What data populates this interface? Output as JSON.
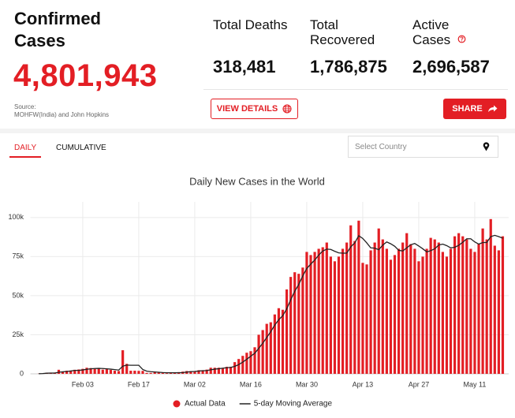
{
  "header": {
    "title": "Confirmed Cases",
    "total": "4,801,943",
    "source": "Source:",
    "source_detail": "MOHFW(India) and John Hopkins"
  },
  "stats": [
    {
      "label": "Total Deaths",
      "value": "318,481"
    },
    {
      "label": "Total Recovered",
      "value": "1,786,875"
    },
    {
      "label": "Active Cases",
      "value": "2,696,587"
    }
  ],
  "buttons": {
    "view_details": "VIEW DETAILS",
    "share": "SHARE"
  },
  "tabs": [
    "DAILY",
    "CUMULATIVE"
  ],
  "country_select": {
    "placeholder": "Select Country"
  },
  "chart_data": {
    "type": "bar",
    "title": "Daily New Cases in the World",
    "categories": [
      null,
      null,
      null,
      null,
      null,
      null,
      null,
      null,
      null,
      null,
      null,
      "Feb 03",
      null,
      null,
      null,
      null,
      null,
      null,
      null,
      null,
      null,
      null,
      null,
      null,
      null,
      "Feb 17",
      null,
      null,
      null,
      null,
      null,
      null,
      null,
      null,
      null,
      null,
      null,
      null,
      null,
      "Mar 02",
      null,
      null,
      null,
      null,
      null,
      null,
      null,
      null,
      null,
      null,
      null,
      null,
      null,
      "Mar 16",
      null,
      null,
      null,
      null,
      null,
      null,
      null,
      null,
      null,
      null,
      null,
      null,
      null,
      "Mar 30",
      null,
      null,
      null,
      null,
      null,
      null,
      null,
      null,
      null,
      null,
      null,
      null,
      null,
      "Apr 13",
      null,
      null,
      null,
      null,
      null,
      null,
      null,
      null,
      null,
      null,
      null,
      null,
      null,
      "Apr 27",
      null,
      null,
      null,
      null,
      null,
      null,
      null,
      null,
      null,
      null,
      null,
      null,
      null,
      "May 11",
      null,
      null,
      null,
      null,
      null,
      null,
      null
    ],
    "series": [
      {
        "name": "Actual Data",
        "type": "bar",
        "color": "#e31e24",
        "values": [
          100,
          300,
          700,
          700,
          800,
          2600,
          1500,
          2000,
          2100,
          2600,
          2800,
          3200,
          3900,
          3700,
          3200,
          3400,
          2700,
          3000,
          2500,
          2000,
          1800,
          15100,
          6400,
          2000,
          2000,
          1900,
          1900,
          600,
          600,
          1000,
          1000,
          600,
          400,
          500,
          800,
          1100,
          1400,
          1800,
          1700,
          1700,
          2300,
          2300,
          2700,
          3900,
          3900,
          3900,
          3500,
          4500,
          4500,
          7500,
          9500,
          11500,
          13500,
          14500,
          17000,
          25000,
          28000,
          32000,
          33000,
          38000,
          42000,
          41000,
          54000,
          62000,
          65000,
          64000,
          68000,
          78000,
          76000,
          78000,
          80000,
          81000,
          84000,
          75000,
          72000,
          75000,
          80000,
          84000,
          95000,
          85000,
          98000,
          71000,
          70000,
          79000,
          84000,
          93000,
          86000,
          80000,
          73000,
          76000,
          80000,
          84000,
          90000,
          83000,
          80000,
          72000,
          75000,
          80000,
          87000,
          86000,
          84000,
          78000,
          75000,
          80000,
          88000,
          90000,
          88000,
          86000,
          80000,
          78000,
          83000,
          93000,
          86000,
          99000,
          82000,
          79000,
          88000
        ]
      },
      {
        "name": "5-day Moving Average",
        "type": "line",
        "color": "#222222",
        "values": [
          100,
          200,
          400,
          500,
          500,
          1000,
          1300,
          1500,
          1800,
          2200,
          2200,
          2500,
          2900,
          3200,
          3400,
          3500,
          3400,
          3200,
          3000,
          2700,
          2400,
          4900,
          5600,
          5500,
          5500,
          5500,
          2800,
          1700,
          1400,
          1200,
          1000,
          800,
          700,
          700,
          700,
          700,
          800,
          1100,
          1400,
          1500,
          1800,
          2000,
          2100,
          2600,
          3000,
          3300,
          3600,
          3900,
          4100,
          4800,
          5900,
          7500,
          9300,
          11300,
          13200,
          16300,
          19600,
          23300,
          27000,
          31200,
          34600,
          37200,
          41600,
          47400,
          52800,
          57200,
          62600,
          67400,
          70200,
          72800,
          76000,
          78600,
          79800,
          79600,
          78400,
          77400,
          77200,
          77200,
          81200,
          83800,
          88400,
          86600,
          83800,
          80600,
          80400,
          79400,
          82400,
          84400,
          83200,
          81600,
          79000,
          78600,
          80600,
          82600,
          83400,
          81800,
          80000,
          78000,
          78800,
          80000,
          82400,
          83000,
          82000,
          80600,
          81000,
          82200,
          84200,
          86400,
          86400,
          84400,
          83000,
          84000,
          84000,
          87800,
          88600,
          87800,
          86800
        ]
      }
    ],
    "ylim": [
      0,
      110000
    ],
    "yticks": [
      0,
      {
        "value": 25000,
        "label": "25k"
      },
      {
        "value": 50000,
        "label": "50k"
      },
      {
        "value": 75000,
        "label": "75k"
      },
      {
        "value": 100000,
        "label": "100k"
      }
    ],
    "grid": true,
    "legend": "bottom"
  }
}
